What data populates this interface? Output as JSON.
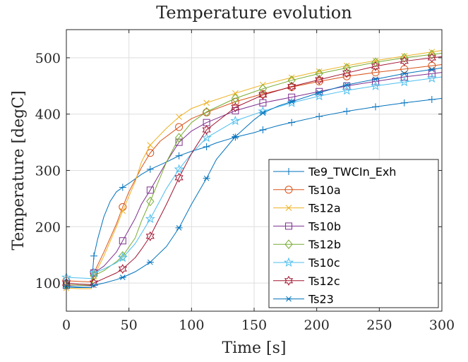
{
  "chart_data": {
    "type": "line",
    "title": "Temperature evolution",
    "xlabel": "Time [s]",
    "ylabel": "Temperature [degC]",
    "xlim": [
      0,
      300
    ],
    "ylim": [
      50,
      550
    ],
    "xticks": [
      0,
      50,
      100,
      150,
      200,
      250,
      300
    ],
    "yticks": [
      100,
      200,
      300,
      400,
      500
    ],
    "grid": true,
    "legend_position": "bottom-right",
    "series": [
      {
        "name": "Te9_TWCIn_Exh",
        "color": "#0072BD",
        "marker": "plus",
        "x": [
          0,
          10,
          20,
          22,
          25,
          30,
          35,
          40,
          45,
          50,
          55,
          60,
          67,
          80,
          90,
          100,
          112,
          120,
          135,
          150,
          157,
          170,
          180,
          200,
          224,
          247,
          270,
          300
        ],
        "y": [
          93,
          92,
          92,
          148,
          178,
          218,
          245,
          262,
          270,
          277,
          285,
          293,
          302,
          315,
          326,
          334,
          342,
          349,
          359,
          367,
          372,
          380,
          385,
          395,
          405,
          413,
          420,
          428
        ],
        "marker_x": [
          0,
          22,
          45,
          67,
          90,
          112,
          135,
          157,
          180,
          202,
          224,
          247,
          270,
          292
        ]
      },
      {
        "name": "Ts10a",
        "color": "#D95319",
        "marker": "circle",
        "x": [
          0,
          10,
          20,
          22,
          30,
          40,
          45,
          50,
          60,
          67,
          75,
          90,
          100,
          112,
          135,
          157,
          180,
          202,
          224,
          247,
          270,
          300
        ],
        "y": [
          104,
          103,
          102,
          118,
          155,
          205,
          235,
          262,
          305,
          331,
          352,
          377,
          392,
          403,
          422,
          436,
          448,
          458,
          467,
          474,
          480,
          488
        ],
        "marker_x": [
          0,
          22,
          45,
          67,
          90,
          112,
          135,
          157,
          180,
          202,
          224,
          247,
          270,
          292
        ]
      },
      {
        "name": "Ts12a",
        "color": "#EDB120",
        "marker": "x",
        "x": [
          0,
          10,
          20,
          22,
          30,
          40,
          45,
          55,
          60,
          67,
          80,
          90,
          100,
          112,
          135,
          157,
          180,
          202,
          224,
          247,
          270,
          300
        ],
        "y": [
          91,
          90,
          90,
          112,
          148,
          200,
          228,
          280,
          315,
          345,
          375,
          395,
          410,
          420,
          437,
          452,
          465,
          476,
          486,
          495,
          503,
          513
        ],
        "marker_x": [
          0,
          22,
          45,
          67,
          90,
          112,
          135,
          157,
          180,
          202,
          224,
          247,
          270,
          292
        ]
      },
      {
        "name": "Ts10b",
        "color": "#7E2F8E",
        "marker": "square",
        "x": [
          0,
          10,
          20,
          22,
          30,
          40,
          45,
          55,
          60,
          67,
          80,
          90,
          100,
          112,
          135,
          157,
          180,
          202,
          224,
          247,
          270,
          300
        ],
        "y": [
          96,
          96,
          95,
          118,
          130,
          155,
          175,
          215,
          240,
          265,
          315,
          350,
          370,
          385,
          406,
          420,
          430,
          440,
          450,
          458,
          466,
          474
        ],
        "marker_x": [
          0,
          22,
          45,
          67,
          90,
          112,
          135,
          157,
          180,
          202,
          224,
          247,
          270,
          292
        ]
      },
      {
        "name": "Ts12b",
        "color": "#77AC30",
        "marker": "diamond",
        "x": [
          0,
          10,
          20,
          22,
          30,
          40,
          45,
          55,
          60,
          67,
          80,
          90,
          100,
          112,
          135,
          157,
          180,
          202,
          224,
          247,
          270,
          300
        ],
        "y": [
          97,
          96,
          96,
          113,
          122,
          138,
          148,
          180,
          210,
          245,
          315,
          358,
          385,
          404,
          428,
          445,
          460,
          472,
          482,
          492,
          500,
          508
        ],
        "marker_x": [
          0,
          22,
          45,
          67,
          90,
          112,
          135,
          157,
          180,
          202,
          224,
          247,
          270,
          292
        ]
      },
      {
        "name": "Ts10c",
        "color": "#4DBEEE",
        "marker": "pentagram",
        "x": [
          0,
          10,
          20,
          22,
          30,
          40,
          45,
          55,
          60,
          67,
          80,
          90,
          100,
          112,
          135,
          157,
          180,
          202,
          224,
          247,
          270,
          300
        ],
        "y": [
          110,
          109,
          108,
          118,
          125,
          136,
          145,
          170,
          188,
          214,
          268,
          302,
          330,
          358,
          388,
          405,
          420,
          432,
          442,
          450,
          457,
          466
        ],
        "marker_x": [
          0,
          22,
          45,
          67,
          90,
          112,
          135,
          157,
          180,
          202,
          224,
          247,
          270,
          292
        ]
      },
      {
        "name": "Ts12c",
        "color": "#A2142F",
        "marker": "hexagram",
        "x": [
          0,
          10,
          20,
          22,
          30,
          40,
          45,
          55,
          60,
          67,
          80,
          90,
          100,
          112,
          135,
          157,
          180,
          202,
          224,
          247,
          270,
          300
        ],
        "y": [
          100,
          98,
          97,
          100,
          108,
          118,
          125,
          145,
          160,
          183,
          240,
          287,
          330,
          372,
          412,
          434,
          449,
          461,
          473,
          485,
          494,
          502
        ],
        "marker_x": [
          0,
          22,
          45,
          67,
          90,
          112,
          135,
          157,
          180,
          202,
          224,
          247,
          270,
          292
        ]
      },
      {
        "name": "Ts23",
        "color": "#0072BD",
        "marker": "asterisk",
        "x": [
          0,
          10,
          20,
          22,
          30,
          40,
          45,
          55,
          60,
          67,
          80,
          90,
          100,
          112,
          120,
          135,
          150,
          157,
          170,
          180,
          202,
          224,
          247,
          270,
          300
        ],
        "y": [
          94,
          93,
          92,
          96,
          100,
          106,
          110,
          120,
          127,
          137,
          165,
          198,
          240,
          286,
          320,
          360,
          390,
          402,
          415,
          422,
          438,
          452,
          462,
          472,
          482
        ],
        "marker_x": [
          0,
          22,
          45,
          67,
          90,
          112,
          135,
          157,
          180,
          202,
          224,
          247,
          270,
          292
        ]
      }
    ]
  }
}
